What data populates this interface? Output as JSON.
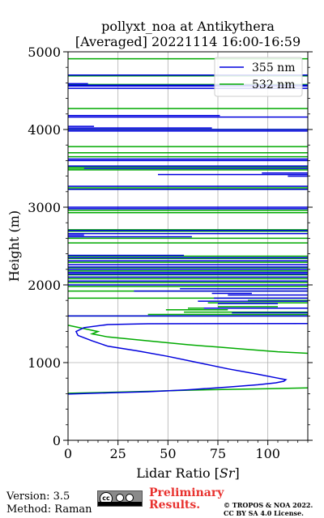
{
  "chart_data": {
    "type": "line",
    "title": [
      "pollyxt_noa at Antikythera",
      "[Averaged] 20221114 16:00-16:59"
    ],
    "xlabel": "Lidar Ratio [",
    "xlabel_italic": "Sr",
    "xlabel_end": "]",
    "ylabel": "Height (m)",
    "xlim": [
      0,
      120
    ],
    "ylim": [
      0,
      5000
    ],
    "xticks": [
      0,
      25,
      50,
      75,
      100
    ],
    "xtick_labels": [
      "0",
      "25",
      "50",
      "75",
      "100"
    ],
    "yticks": [
      0,
      1000,
      2000,
      3000,
      4000,
      5000
    ],
    "ytick_labels": [
      "0",
      "1000",
      "2000",
      "3000",
      "4000",
      "5000"
    ],
    "grid": true,
    "legend_position": "top-right",
    "series": [
      {
        "name": "355 nm",
        "color": "#0000dd",
        "curve": [
          [
            0,
            595
          ],
          [
            20,
            610
          ],
          [
            40,
            625
          ],
          [
            60,
            650
          ],
          [
            80,
            685
          ],
          [
            95,
            715
          ],
          [
            104,
            740
          ],
          [
            108,
            760
          ],
          [
            109,
            780
          ],
          [
            105,
            800
          ],
          [
            95,
            850
          ],
          [
            80,
            920
          ],
          [
            65,
            1000
          ],
          [
            50,
            1080
          ],
          [
            35,
            1150
          ],
          [
            20,
            1210
          ],
          [
            12,
            1280
          ],
          [
            5,
            1350
          ],
          [
            4,
            1400
          ],
          [
            8,
            1450
          ],
          [
            20,
            1490
          ],
          [
            40,
            1500
          ],
          [
            120,
            1502
          ]
        ],
        "segments": [
          [
            0,
            120,
            1600
          ],
          [
            82,
            120,
            1640
          ],
          [
            68,
            120,
            1700
          ],
          [
            75,
            105,
            1760
          ],
          [
            65,
            120,
            1790
          ],
          [
            73,
            120,
            1830
          ],
          [
            80,
            120,
            1870
          ],
          [
            72,
            92,
            1890
          ],
          [
            33,
            120,
            1920
          ],
          [
            56,
            120,
            1950
          ],
          [
            0,
            120,
            2000
          ],
          [
            0,
            120,
            2050
          ],
          [
            0,
            120,
            2100
          ],
          [
            0,
            120,
            2140
          ],
          [
            0,
            120,
            2160
          ],
          [
            0,
            120,
            2200
          ],
          [
            0,
            120,
            2230
          ],
          [
            0,
            120,
            2260
          ],
          [
            0,
            120,
            2310
          ],
          [
            0,
            120,
            2350
          ],
          [
            0,
            58,
            2380
          ],
          [
            0,
            62,
            2620
          ],
          [
            0,
            8,
            2640
          ],
          [
            0,
            120,
            2660
          ],
          [
            0,
            120,
            2700
          ],
          [
            0,
            120,
            2980
          ],
          [
            0,
            120,
            3000
          ],
          [
            0,
            120,
            3230
          ],
          [
            0,
            120,
            3270
          ],
          [
            45,
            120,
            3420
          ],
          [
            97,
            120,
            3440
          ],
          [
            110,
            120,
            3400
          ],
          [
            8,
            120,
            3500
          ],
          [
            0,
            120,
            3530
          ],
          [
            0,
            120,
            3600
          ],
          [
            0,
            120,
            3620
          ],
          [
            0,
            120,
            3980
          ],
          [
            0,
            120,
            4000
          ],
          [
            0,
            72,
            4020
          ],
          [
            0,
            13,
            4040
          ],
          [
            0,
            120,
            4160
          ],
          [
            0,
            76,
            4180
          ],
          [
            0,
            120,
            4530
          ],
          [
            0,
            120,
            4560
          ],
          [
            0,
            120,
            4570
          ],
          [
            0,
            10,
            4590
          ],
          [
            0,
            120,
            4700
          ]
        ]
      },
      {
        "name": "532 nm",
        "color": "#00aa00",
        "curve": [
          [
            0,
            605
          ],
          [
            20,
            618
          ],
          [
            40,
            630
          ],
          [
            60,
            645
          ],
          [
            80,
            655
          ],
          [
            100,
            665
          ],
          [
            120,
            675
          ]
        ],
        "curve2": [
          [
            0,
            1480
          ],
          [
            15,
            1400
          ],
          [
            12,
            1370
          ],
          [
            20,
            1330
          ],
          [
            40,
            1280
          ],
          [
            60,
            1230
          ],
          [
            75,
            1200
          ],
          [
            90,
            1170
          ],
          [
            105,
            1140
          ],
          [
            120,
            1120
          ]
        ],
        "segments": [
          [
            0,
            120,
            1600
          ],
          [
            40,
            120,
            1620
          ],
          [
            58,
            120,
            1650
          ],
          [
            49,
            80,
            1680
          ],
          [
            60,
            120,
            1700
          ],
          [
            75,
            105,
            1720
          ],
          [
            70,
            120,
            1770
          ],
          [
            90,
            120,
            1800
          ],
          [
            0,
            120,
            1830
          ],
          [
            0,
            120,
            1920
          ],
          [
            0,
            120,
            1980
          ],
          [
            0,
            120,
            2030
          ],
          [
            0,
            120,
            2080
          ],
          [
            0,
            120,
            2130
          ],
          [
            0,
            120,
            2180
          ],
          [
            0,
            120,
            2220
          ],
          [
            0,
            120,
            2290
          ],
          [
            0,
            120,
            2340
          ],
          [
            0,
            120,
            2370
          ],
          [
            0,
            120,
            2540
          ],
          [
            0,
            120,
            2600
          ],
          [
            0,
            120,
            2690
          ],
          [
            0,
            120,
            2710
          ],
          [
            0,
            120,
            2930
          ],
          [
            0,
            120,
            2960
          ],
          [
            0,
            120,
            3230
          ],
          [
            0,
            120,
            3250
          ],
          [
            0,
            120,
            3480
          ],
          [
            0,
            120,
            3500
          ],
          [
            0,
            120,
            3520
          ],
          [
            0,
            120,
            3650
          ],
          [
            0,
            120,
            3700
          ],
          [
            0,
            120,
            3780
          ],
          [
            0,
            120,
            4000
          ],
          [
            0,
            120,
            4270
          ],
          [
            0,
            120,
            4560
          ],
          [
            0,
            120,
            4580
          ],
          [
            0,
            120,
            4690
          ],
          [
            0,
            120,
            4910
          ]
        ]
      }
    ]
  },
  "footer": {
    "version": "Version: 3.5",
    "method": "Method: Raman",
    "cc_label": "cc",
    "preliminary_line1": "Preliminary",
    "preliminary_line2": "Results.",
    "copyright_line1": "© TROPOS & NOA 2022.",
    "copyright_line2": "CC BY SA 4.0 License."
  }
}
